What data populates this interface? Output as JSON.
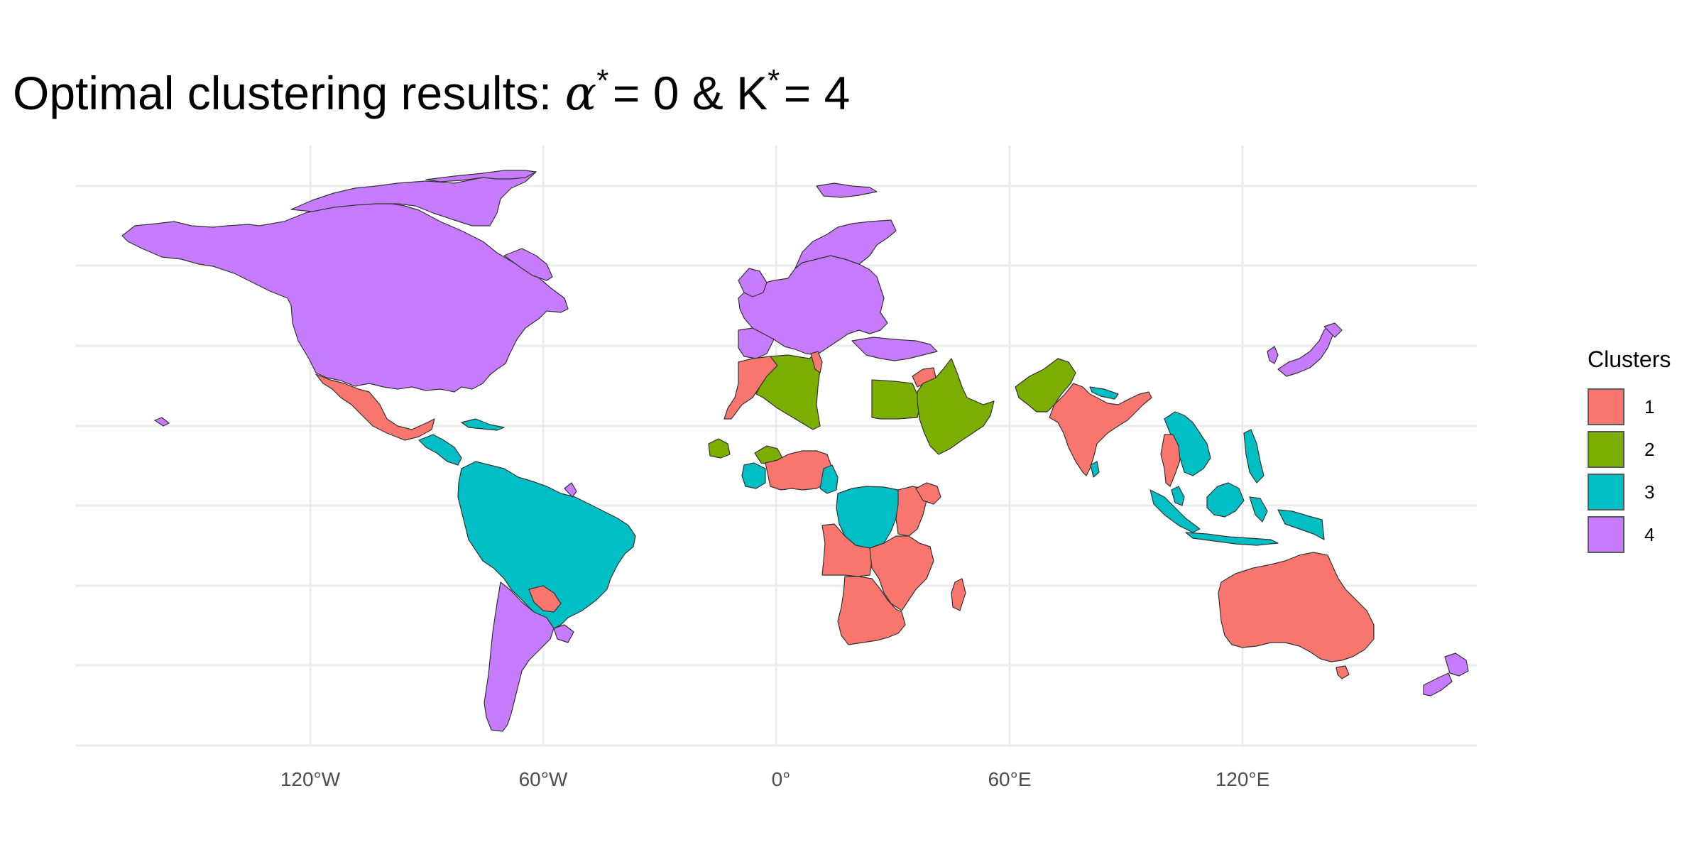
{
  "title": {
    "prefix": "Optimal clustering results: ",
    "alpha_symbol": "α",
    "star": "*",
    "alpha_value": "= 0",
    "ampersand": " & ",
    "k_symbol": "K",
    "k_value": "= 4"
  },
  "x_axis": {
    "ticks": [
      "120°W",
      "60°W",
      "0°",
      "60°E",
      "120°E"
    ]
  },
  "legend": {
    "title": "Clusters",
    "items": [
      {
        "label": "1",
        "color": "#F8766D"
      },
      {
        "label": "2",
        "color": "#7CAE00"
      },
      {
        "label": "3",
        "color": "#00BFC4"
      },
      {
        "label": "4",
        "color": "#C77CFF"
      }
    ]
  },
  "colors": {
    "cluster_1": "#F8766D",
    "cluster_2": "#7CAE00",
    "cluster_3": "#00BFC4",
    "cluster_4": "#C77CFF",
    "background": "#ffffff",
    "gridline": "#ebebeb",
    "border": "#333333"
  },
  "map": {
    "type": "choropleth",
    "grid": true,
    "legend_position": "right"
  }
}
